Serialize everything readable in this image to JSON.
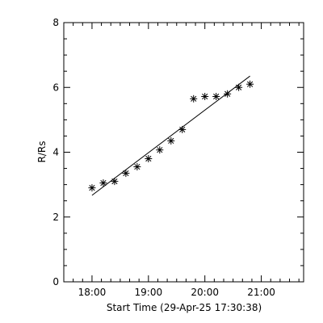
{
  "chart_data": {
    "type": "scatter",
    "xlabel": "Start Time (29-Apr-25 17:30:38)",
    "ylabel": "R/Rs",
    "xlim": [
      "17:30",
      "21:45"
    ],
    "ylim": [
      0,
      8
    ],
    "x_ticks": [
      "18:00",
      "19:00",
      "20:00",
      "21:00"
    ],
    "y_ticks": [
      "0",
      "2",
      "4",
      "6",
      "8"
    ],
    "grid": false,
    "series": [
      {
        "marker": "asterisk",
        "points": [
          {
            "x": "18:00",
            "y": 2.9
          },
          {
            "x": "18:12",
            "y": 3.05
          },
          {
            "x": "18:24",
            "y": 3.1
          },
          {
            "x": "18:36",
            "y": 3.35
          },
          {
            "x": "18:48",
            "y": 3.55
          },
          {
            "x": "19:00",
            "y": 3.8
          },
          {
            "x": "19:12",
            "y": 4.07
          },
          {
            "x": "19:24",
            "y": 4.35
          },
          {
            "x": "19:36",
            "y": 4.7
          },
          {
            "x": "19:48",
            "y": 5.65
          },
          {
            "x": "20:00",
            "y": 5.72
          },
          {
            "x": "20:12",
            "y": 5.72
          },
          {
            "x": "20:24",
            "y": 5.8
          },
          {
            "x": "20:36",
            "y": 6.0
          },
          {
            "x": "20:48",
            "y": 6.1
          }
        ]
      }
    ],
    "fit_line": [
      {
        "x": "18:00",
        "y": 2.67
      },
      {
        "x": "20:48",
        "y": 6.35
      }
    ]
  }
}
